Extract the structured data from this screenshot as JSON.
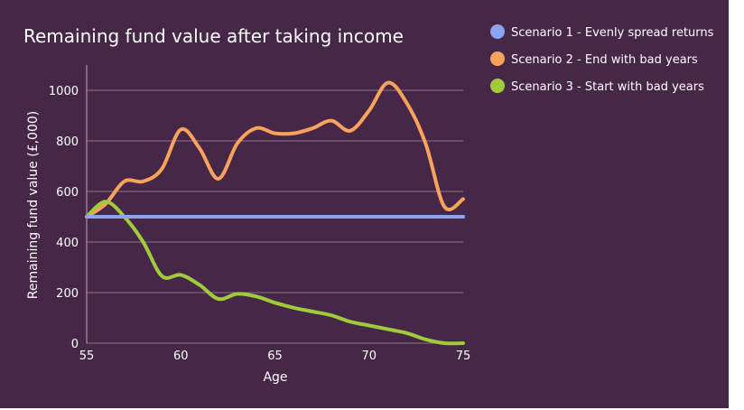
{
  "chart_data": {
    "type": "line",
    "title": "Remaining fund value after taking income",
    "xlabel": "Age",
    "ylabel": "Remaining fund value (£,000)",
    "xlim": [
      55,
      75
    ],
    "ylim": [
      0,
      1100
    ],
    "x_ticks": [
      55,
      60,
      65,
      70,
      75
    ],
    "y_ticks": [
      0,
      200,
      400,
      600,
      800,
      1000
    ],
    "x_tick_labels": [
      "55",
      "60",
      "65",
      "70",
      "75"
    ],
    "y_tick_labels": [
      "0",
      "200",
      "400",
      "600",
      "800",
      "1000"
    ],
    "grid": true,
    "legend_position": "top-right",
    "x": [
      55,
      56,
      57,
      58,
      59,
      60,
      61,
      62,
      63,
      64,
      65,
      66,
      67,
      68,
      69,
      70,
      71,
      72,
      73,
      74,
      75
    ],
    "series": [
      {
        "name": "Scenario 1 - Evenly spread returns",
        "color": "#8aa4f2",
        "values": [
          500,
          500,
          500,
          500,
          500,
          500,
          500,
          500,
          500,
          500,
          500,
          500,
          500,
          500,
          500,
          500,
          500,
          500,
          500,
          500,
          500
        ]
      },
      {
        "name": "Scenario 2 - End with bad years",
        "color": "#f7a35c",
        "values": [
          500,
          550,
          640,
          640,
          690,
          845,
          770,
          650,
          790,
          850,
          830,
          830,
          850,
          880,
          840,
          920,
          1030,
          950,
          790,
          540,
          570
        ]
      },
      {
        "name": "Scenario 3 - Start with bad years",
        "color": "#a0cc3a",
        "values": [
          500,
          560,
          500,
          400,
          265,
          270,
          230,
          175,
          195,
          185,
          160,
          140,
          125,
          110,
          85,
          70,
          55,
          40,
          15,
          0,
          0
        ]
      }
    ]
  }
}
